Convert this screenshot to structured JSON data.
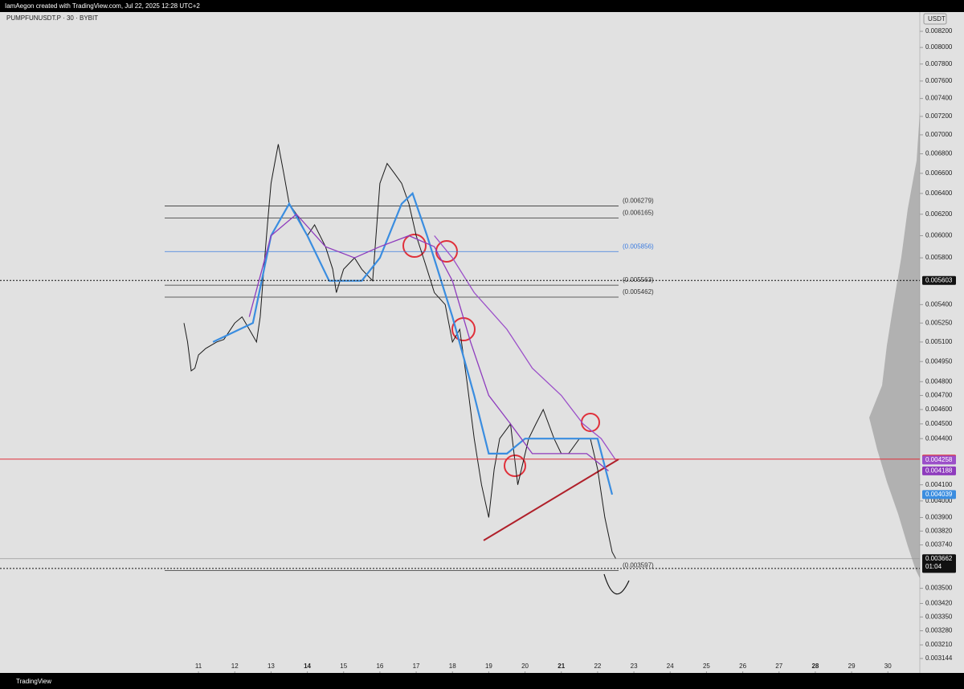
{
  "header": {
    "caption": "IamAegon created with TradingView.com, Jul 22, 2025 12:28 UTC+2",
    "symbol": "PUMPFUNUSDT.P · 30 · BYBIT",
    "currency": "USDT",
    "footer": "TradingView"
  },
  "chart_data": {
    "type": "line",
    "log_scale": true,
    "xlim": [
      5.53,
      30.88
    ],
    "ylim": [
      0.003144,
      0.0082
    ],
    "xticks": [
      11,
      12,
      13,
      14,
      15,
      16,
      17,
      18,
      19,
      20,
      21,
      22,
      23,
      24,
      25,
      26,
      27,
      28,
      29,
      30
    ],
    "yticks": [
      {
        "value": 0.0082,
        "label": "0.008200"
      },
      {
        "value": 0.008,
        "label": "0.008000"
      },
      {
        "value": 0.0078,
        "label": "0.007800"
      },
      {
        "value": 0.0076,
        "label": "0.007600"
      },
      {
        "value": 0.0074,
        "label": "0.007400"
      },
      {
        "value": 0.0072,
        "label": "0.007200"
      },
      {
        "value": 0.007,
        "label": "0.007000"
      },
      {
        "value": 0.0068,
        "label": "0.006800"
      },
      {
        "value": 0.0066,
        "label": "0.006600"
      },
      {
        "value": 0.0064,
        "label": "0.006400"
      },
      {
        "value": 0.0062,
        "label": "0.006200"
      },
      {
        "value": 0.006,
        "label": "0.006000"
      },
      {
        "value": 0.0058,
        "label": "0.005800"
      },
      {
        "value": 0.0054,
        "label": "0.005400"
      },
      {
        "value": 0.00525,
        "label": "0.005250"
      },
      {
        "value": 0.0051,
        "label": "0.005100"
      },
      {
        "value": 0.00495,
        "label": "0.004950"
      },
      {
        "value": 0.0048,
        "label": "0.004800"
      },
      {
        "value": 0.0047,
        "label": "0.004700"
      },
      {
        "value": 0.0046,
        "label": "0.004600"
      },
      {
        "value": 0.0045,
        "label": "0.004500"
      },
      {
        "value": 0.0044,
        "label": "0.004400"
      },
      {
        "value": 0.0041,
        "label": "0.004100"
      },
      {
        "value": 0.004,
        "label": "0.004000"
      },
      {
        "value": 0.0039,
        "label": "0.003900"
      },
      {
        "value": 0.00382,
        "label": "0.003820"
      },
      {
        "value": 0.00374,
        "label": "0.003740"
      },
      {
        "value": 0.0035,
        "label": "0.003500"
      },
      {
        "value": 0.00342,
        "label": "0.003420"
      },
      {
        "value": 0.00335,
        "label": "0.003350"
      },
      {
        "value": 0.00328,
        "label": "0.003280"
      },
      {
        "value": 0.00321,
        "label": "0.003210"
      },
      {
        "value": 0.003144,
        "label": "0.003144"
      }
    ],
    "series": [
      {
        "color": "#1a1a1a",
        "x": [
          10.6,
          10.7,
          10.8,
          10.9,
          11.0,
          11.2,
          11.5,
          11.7,
          12.0,
          12.2,
          12.4,
          12.6,
          12.7,
          12.8,
          12.9,
          13.0,
          13.1,
          13.2,
          13.35,
          13.5,
          13.7,
          14.0,
          14.2,
          14.5,
          14.7,
          14.8,
          15.0,
          15.3,
          15.5,
          15.8,
          16.0,
          16.2,
          16.4,
          16.6,
          16.8,
          17.0,
          17.2,
          17.3,
          17.5,
          17.8,
          18.0,
          18.2,
          18.4,
          18.6,
          18.8,
          19.0,
          19.15,
          19.3,
          19.6,
          19.8,
          20.1,
          20.3,
          20.5,
          20.8,
          21.0,
          21.2,
          21.5,
          21.8,
          22.0,
          22.2,
          22.4,
          22.5
        ],
        "values": [
          0.00525,
          0.0051,
          0.00488,
          0.0049,
          0.005,
          0.00505,
          0.0051,
          0.00512,
          0.00525,
          0.0053,
          0.0052,
          0.0051,
          0.0053,
          0.0057,
          0.0061,
          0.0065,
          0.0067,
          0.0069,
          0.0066,
          0.0063,
          0.0062,
          0.006,
          0.0061,
          0.0059,
          0.0057,
          0.0055,
          0.0057,
          0.0058,
          0.0057,
          0.0056,
          0.0065,
          0.0067,
          0.0066,
          0.0065,
          0.0063,
          0.006,
          0.0058,
          0.0057,
          0.0055,
          0.0054,
          0.0051,
          0.0052,
          0.0048,
          0.0044,
          0.0041,
          0.0039,
          0.0042,
          0.0044,
          0.0045,
          0.0041,
          0.0044,
          0.0045,
          0.0046,
          0.0044,
          0.0043,
          0.0043,
          0.0044,
          0.0044,
          0.0042,
          0.0039,
          0.0037,
          0.003662
        ]
      },
      {
        "color": "#3a8de0",
        "x": [
          11.4,
          12.5,
          13.0,
          13.5,
          14.0,
          14.6,
          15.5,
          16.0,
          16.6,
          16.9,
          17.3,
          18.0,
          18.6,
          19.0,
          19.5,
          20.0,
          20.5,
          21.0,
          21.5,
          22.0,
          22.4
        ],
        "values": [
          0.0051,
          0.00525,
          0.006,
          0.0063,
          0.006,
          0.0056,
          0.0056,
          0.0058,
          0.0063,
          0.0064,
          0.006,
          0.0053,
          0.0047,
          0.0043,
          0.0043,
          0.0044,
          0.0044,
          0.0044,
          0.0044,
          0.0044,
          0.004039
        ]
      },
      {
        "color": "#8e3bbd",
        "x": [
          12.4,
          13.0,
          13.7,
          14.5,
          15.3,
          16.0,
          16.8,
          17.5,
          18.0,
          18.5,
          19.0,
          19.6,
          20.2,
          21.0,
          21.7,
          22.3
        ],
        "values": [
          0.0053,
          0.006,
          0.0062,
          0.0059,
          0.0058,
          0.0059,
          0.006,
          0.0059,
          0.0056,
          0.0051,
          0.0047,
          0.0045,
          0.0043,
          0.0043,
          0.0043,
          0.004188
        ]
      },
      {
        "color": "#9b4fc9",
        "x": [
          17.5,
          18.0,
          18.6,
          19.5,
          20.2,
          21.0,
          21.6,
          22.1,
          22.5
        ],
        "values": [
          0.006,
          0.0058,
          0.0055,
          0.0052,
          0.0049,
          0.0047,
          0.0045,
          0.0044,
          0.004258
        ]
      }
    ],
    "levels": [
      {
        "value": 0.006279,
        "label": "(0.006279)",
        "color": "#333333"
      },
      {
        "value": 0.006165,
        "label": "(0.006165)",
        "color": "#333333"
      },
      {
        "value": 0.005856,
        "label": "(0.005856)",
        "color": "#3a7be0"
      },
      {
        "value": 0.005563,
        "label": "(0.005563)",
        "color": "#333333"
      },
      {
        "value": 0.005462,
        "label": "(0.005462)",
        "color": "#333333"
      },
      {
        "value": 0.003597,
        "label": "(0.003597)",
        "color": "#333333"
      }
    ],
    "price_marks": [
      {
        "value": 0.005603,
        "label": "0.005603",
        "color": "#111111",
        "line": "dotted"
      },
      {
        "value": 0.004264,
        "label": "0.004264",
        "color": "#e0303a",
        "line": "solid"
      },
      {
        "value": 0.004258,
        "label": "0.004258",
        "color": "#9b4fc9"
      },
      {
        "value": 0.004188,
        "label": "0.004188",
        "color": "#8e3bbd"
      },
      {
        "value": 0.004039,
        "label": "0.004039",
        "color": "#3a8de0"
      },
      {
        "value": 0.003662,
        "label": "0.003662",
        "color": "#111111",
        "line": "thin"
      },
      {
        "value": 0.003608,
        "label": "0.003608",
        "color": "#111111",
        "line": "dotted"
      }
    ],
    "countdown": "01:04"
  }
}
